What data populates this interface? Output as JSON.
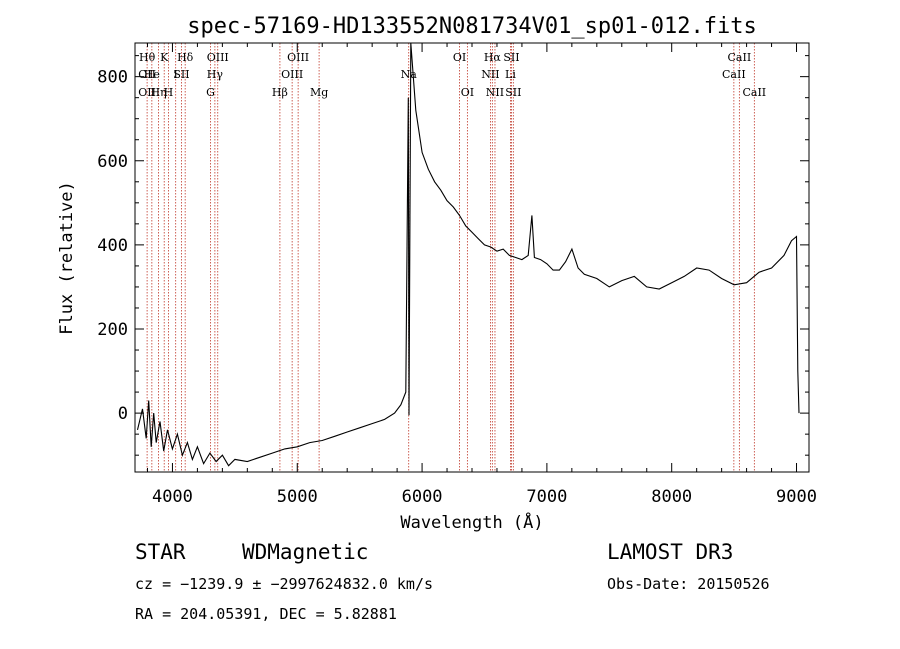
{
  "title": "spec-57169-HD133552N081734V01_sp01-012.fits",
  "footer": {
    "class_label": "STAR",
    "subclass": "WDMagnetic",
    "survey": "LAMOST DR3",
    "cz_line": "cz = −1239.9 ± −2997624832.0 km/s",
    "obs_date": "Obs-Date: 20150526",
    "radec": "RA = 204.05391, DEC =   5.82881"
  },
  "colors": {
    "spectrum": "#000000",
    "lines": "#c0392b",
    "axes": "#000000"
  },
  "chart_data": {
    "type": "line",
    "title": "spec-57169-HD133552N081734V01_sp01-012.fits",
    "xlabel": "Wavelength (Å)",
    "ylabel": "Flux (relative)",
    "xlim": [
      3700,
      9100
    ],
    "ylim": [
      -140,
      880
    ],
    "x_ticks": [
      4000,
      5000,
      6000,
      7000,
      8000,
      9000
    ],
    "y_ticks": [
      0,
      200,
      400,
      600,
      800
    ],
    "x_tick_labels": [
      "4000",
      "5000",
      "6000",
      "7000",
      "8000",
      "9000"
    ],
    "y_tick_labels": [
      "0",
      "200",
      "400",
      "600",
      "800"
    ],
    "grid": false,
    "series": [
      {
        "points": [
          [
            3720,
            -40
          ],
          [
            3760,
            10
          ],
          [
            3790,
            -60
          ],
          [
            3810,
            30
          ],
          [
            3830,
            -80
          ],
          [
            3850,
            0
          ],
          [
            3870,
            -70
          ],
          [
            3900,
            -20
          ],
          [
            3930,
            -90
          ],
          [
            3960,
            -40
          ],
          [
            4000,
            -85
          ],
          [
            4040,
            -50
          ],
          [
            4080,
            -100
          ],
          [
            4120,
            -70
          ],
          [
            4160,
            -110
          ],
          [
            4200,
            -80
          ],
          [
            4250,
            -120
          ],
          [
            4300,
            -95
          ],
          [
            4350,
            -115
          ],
          [
            4400,
            -100
          ],
          [
            4450,
            -125
          ],
          [
            4500,
            -110
          ],
          [
            4600,
            -115
          ],
          [
            4700,
            -105
          ],
          [
            4800,
            -95
          ],
          [
            4900,
            -85
          ],
          [
            5000,
            -80
          ],
          [
            5100,
            -70
          ],
          [
            5200,
            -65
          ],
          [
            5300,
            -55
          ],
          [
            5400,
            -45
          ],
          [
            5500,
            -35
          ],
          [
            5600,
            -25
          ],
          [
            5700,
            -15
          ],
          [
            5780,
            0
          ],
          [
            5830,
            20
          ],
          [
            5870,
            50
          ],
          [
            5890,
            750
          ],
          [
            5895,
            -5
          ],
          [
            5910,
            880
          ],
          [
            5950,
            720
          ],
          [
            6000,
            620
          ],
          [
            6050,
            580
          ],
          [
            6100,
            550
          ],
          [
            6150,
            530
          ],
          [
            6200,
            505
          ],
          [
            6250,
            490
          ],
          [
            6300,
            470
          ],
          [
            6350,
            445
          ],
          [
            6400,
            430
          ],
          [
            6450,
            415
          ],
          [
            6500,
            400
          ],
          [
            6550,
            395
          ],
          [
            6600,
            385
          ],
          [
            6650,
            390
          ],
          [
            6700,
            375
          ],
          [
            6750,
            370
          ],
          [
            6800,
            365
          ],
          [
            6850,
            375
          ],
          [
            6880,
            470
          ],
          [
            6900,
            370
          ],
          [
            6950,
            365
          ],
          [
            7000,
            355
          ],
          [
            7050,
            340
          ],
          [
            7100,
            340
          ],
          [
            7150,
            360
          ],
          [
            7200,
            390
          ],
          [
            7250,
            345
          ],
          [
            7300,
            330
          ],
          [
            7400,
            320
          ],
          [
            7500,
            300
          ],
          [
            7600,
            315
          ],
          [
            7700,
            325
          ],
          [
            7800,
            300
          ],
          [
            7900,
            295
          ],
          [
            8000,
            310
          ],
          [
            8100,
            325
          ],
          [
            8200,
            345
          ],
          [
            8300,
            340
          ],
          [
            8400,
            320
          ],
          [
            8500,
            305
          ],
          [
            8600,
            310
          ],
          [
            8700,
            335
          ],
          [
            8800,
            345
          ],
          [
            8900,
            375
          ],
          [
            8960,
            410
          ],
          [
            9000,
            420
          ],
          [
            9010,
            100
          ],
          [
            9020,
            0
          ]
        ]
      }
    ],
    "annotations": [
      {
        "x": 3797,
        "rows": [
          {
            "text": "Hθ",
            "row": 0
          },
          {
            "text": "OII",
            "row": 1
          },
          {
            "text": "OII",
            "row": 2
          }
        ]
      },
      {
        "x": 3835,
        "rows": [
          {
            "text": "He",
            "row": 1
          }
        ]
      },
      {
        "x": 3889,
        "rows": [
          {
            "text": "Hη",
            "row": 2
          }
        ]
      },
      {
        "x": 3934,
        "rows": [
          {
            "text": "K",
            "row": 0
          }
        ]
      },
      {
        "x": 3968,
        "rows": [
          {
            "text": "H",
            "row": 2
          }
        ]
      },
      {
        "x": 4026,
        "rows": [
          {
            "text": "I",
            "row": 1
          }
        ]
      },
      {
        "x": 4072,
        "rows": [
          {
            "text": "SII",
            "row": 1
          }
        ]
      },
      {
        "x": 4102,
        "rows": [
          {
            "text": "Hδ",
            "row": 0
          }
        ]
      },
      {
        "x": 4305,
        "rows": [
          {
            "text": "G",
            "row": 2
          }
        ]
      },
      {
        "x": 4340,
        "rows": [
          {
            "text": "Hγ",
            "row": 1
          }
        ]
      },
      {
        "x": 4363,
        "rows": [
          {
            "text": "OIII",
            "row": 0
          }
        ]
      },
      {
        "x": 4861,
        "rows": [
          {
            "text": "Hβ",
            "row": 2
          }
        ]
      },
      {
        "x": 4959,
        "rows": [
          {
            "text": "OIII",
            "row": 1
          }
        ]
      },
      {
        "x": 5007,
        "rows": [
          {
            "text": "OIII",
            "row": 0
          }
        ]
      },
      {
        "x": 5175,
        "rows": [
          {
            "text": "Mg",
            "row": 2
          }
        ]
      },
      {
        "x": 5893,
        "rows": [
          {
            "text": "Na",
            "row": 1
          }
        ]
      },
      {
        "x": 6300,
        "rows": [
          {
            "text": "OI",
            "row": 0
          }
        ]
      },
      {
        "x": 6363,
        "rows": [
          {
            "text": "OI",
            "row": 2
          }
        ]
      },
      {
        "x": 6548,
        "rows": [
          {
            "text": "NII",
            "row": 1
          }
        ]
      },
      {
        "x": 6563,
        "rows": [
          {
            "text": "Hα",
            "row": 0
          }
        ]
      },
      {
        "x": 6584,
        "rows": [
          {
            "text": "NII",
            "row": 2
          }
        ]
      },
      {
        "x": 6708,
        "rows": [
          {
            "text": "Li",
            "row": 1
          }
        ]
      },
      {
        "x": 6716,
        "rows": [
          {
            "text": "SII",
            "row": 0
          }
        ]
      },
      {
        "x": 6731,
        "rows": [
          {
            "text": "SII",
            "row": 2
          }
        ]
      },
      {
        "x": 8498,
        "rows": [
          {
            "text": "CaII",
            "row": 1
          }
        ]
      },
      {
        "x": 8542,
        "rows": [
          {
            "text": "CaII",
            "row": 0
          }
        ]
      },
      {
        "x": 8662,
        "rows": [
          {
            "text": "CaII",
            "row": 2
          }
        ]
      }
    ]
  }
}
